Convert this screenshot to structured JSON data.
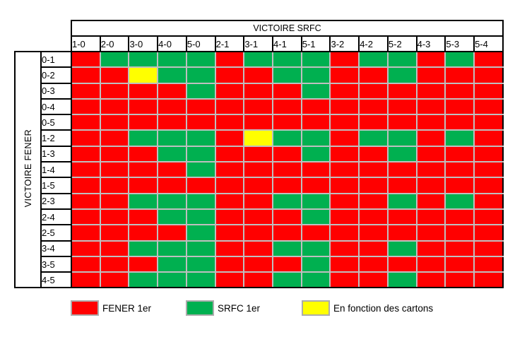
{
  "chart_data": {
    "type": "heatmap",
    "col_axis_label": "VICTOIRE SRFC",
    "row_axis_label": "VICTOIRE FENER",
    "columns": [
      "1-0",
      "2-0",
      "3-0",
      "4-0",
      "5-0",
      "2-1",
      "3-1",
      "4-1",
      "5-1",
      "3-2",
      "4-2",
      "5-2",
      "4-3",
      "5-3",
      "5-4"
    ],
    "rows": [
      "0-1",
      "0-2",
      "0-3",
      "0-4",
      "0-5",
      "1-2",
      "1-3",
      "1-4",
      "1-5",
      "2-3",
      "2-4",
      "2-5",
      "3-4",
      "3-5",
      "4-5"
    ],
    "matrix": [
      "RGGGGRGGGRGGRGR",
      "RRYGGRRGGRRGRRR",
      "RRRRGRRRGRRRRRR",
      "RRRRRRRRRRRRRRR",
      "RRRRRRRRRRRRRRR",
      "RRGGGRYGGRGGRGR",
      "RRRGGRRRGRRGRRR",
      "RRRRGRRRRRRRRRR",
      "RRRRRRRRRRRRRRR",
      "RRGGGRRGGRRGRGR",
      "RRRGGRRRGRRRRRR",
      "RRRRGRRRRRRRRRR",
      "RRGGGRRGGRRGRRR",
      "RRRGGRRRGRRRRRR",
      "RRGGGRRGGRRGRRR"
    ],
    "legend": [
      {
        "code": "R",
        "label": "FENER 1er",
        "color": "#FF0000"
      },
      {
        "code": "G",
        "label": "SRFC 1er",
        "color": "#00B050"
      },
      {
        "code": "Y",
        "label": "En fonction des cartons",
        "color": "#FFFF00"
      }
    ],
    "grid_line_color": "#BFBFBF",
    "border_color": "#000000",
    "layout": {
      "grid_on": true,
      "legend_position": "bottom"
    }
  }
}
